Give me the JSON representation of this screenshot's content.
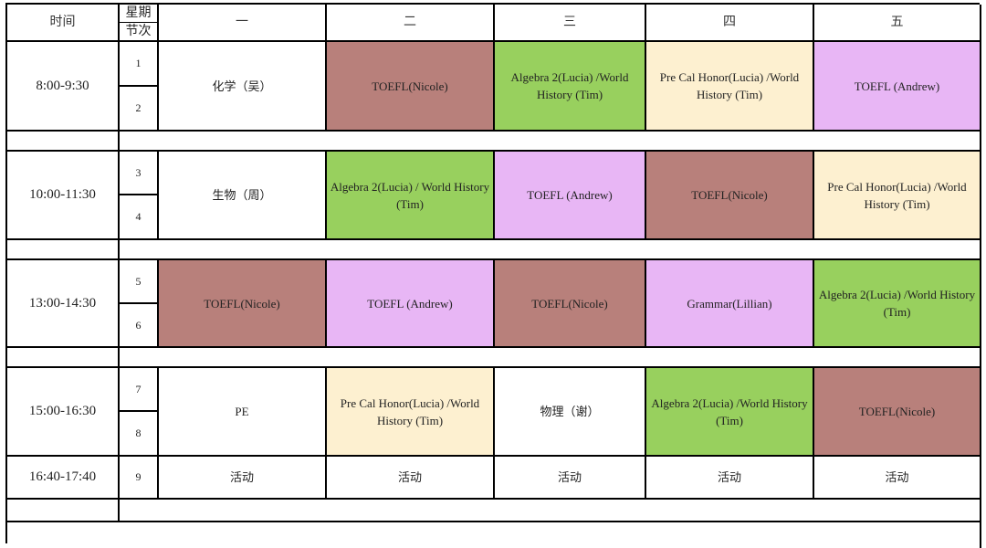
{
  "header": {
    "time_label": "时间",
    "weekday_label": "星期",
    "period_label": "节次",
    "days": [
      "一",
      "二",
      "三",
      "四",
      "五"
    ]
  },
  "colors": {
    "toefl_nicole": "#b8807b",
    "algebra_world_history": "#98d05e",
    "precal_world_history": "#fdf0d0",
    "toefl_andrew_grammar": "#e8b6f5"
  },
  "blocks": [
    {
      "time": "8:00-9:30",
      "periods": [
        "1",
        "2"
      ],
      "classes": [
        "化学（吴）",
        "TOEFL(Nicole)",
        "Algebra 2(Lucia) /World History (Tim)",
        "Pre Cal Honor(Lucia) /World History (Tim)",
        "TOEFL (Andrew)"
      ]
    },
    {
      "time": "10:00-11:30",
      "periods": [
        "3",
        "4"
      ],
      "classes": [
        "生物（周）",
        "Algebra 2(Lucia) / World History (Tim)",
        "TOEFL (Andrew)",
        "TOEFL(Nicole)",
        "Pre Cal Honor(Lucia) /World History (Tim)"
      ]
    },
    {
      "time": "13:00-14:30",
      "periods": [
        "5",
        "6"
      ],
      "classes": [
        "TOEFL(Nicole)",
        "TOEFL (Andrew)",
        "TOEFL(Nicole)",
        "Grammar(Lillian)",
        "Algebra 2(Lucia) /World History (Tim)"
      ]
    },
    {
      "time": "15:00-16:30",
      "periods": [
        "7",
        "8"
      ],
      "classes": [
        "PE",
        "Pre Cal Honor(Lucia) /World History (Tim)",
        "物理（谢）",
        "Algebra 2(Lucia) /World History (Tim)",
        "TOEFL(Nicole)"
      ]
    }
  ],
  "activity_row": {
    "time": "16:40-17:40",
    "period": "9",
    "classes": [
      "活动",
      "活动",
      "活动",
      "活动",
      "活动"
    ]
  }
}
